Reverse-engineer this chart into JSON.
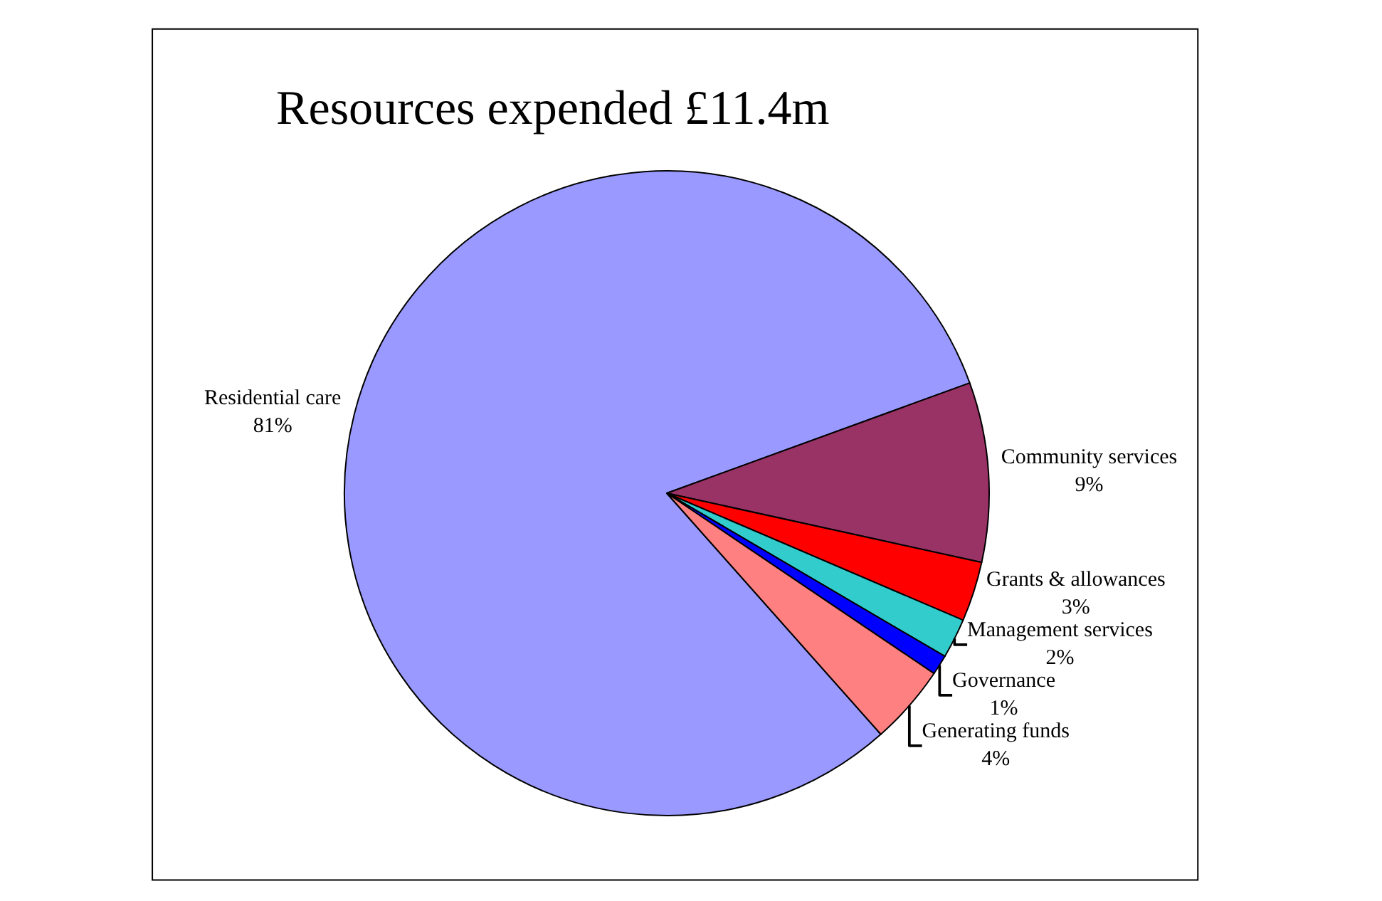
{
  "chart_data": {
    "type": "pie",
    "title": "Resources expended £11.4m",
    "categories": [
      "Residential care",
      "Community services",
      "Grants & allowances",
      "Management services",
      "Governance",
      "Generating funds"
    ],
    "values": [
      81,
      9,
      3,
      2,
      1,
      4
    ],
    "value_labels": [
      "81%",
      "9%",
      "3%",
      "2%",
      "1%",
      "4%"
    ],
    "colors": [
      "#9999ff",
      "#993366",
      "#ff0000",
      "#33cccc",
      "#0000ff",
      "#ff8080"
    ],
    "legend": false
  }
}
